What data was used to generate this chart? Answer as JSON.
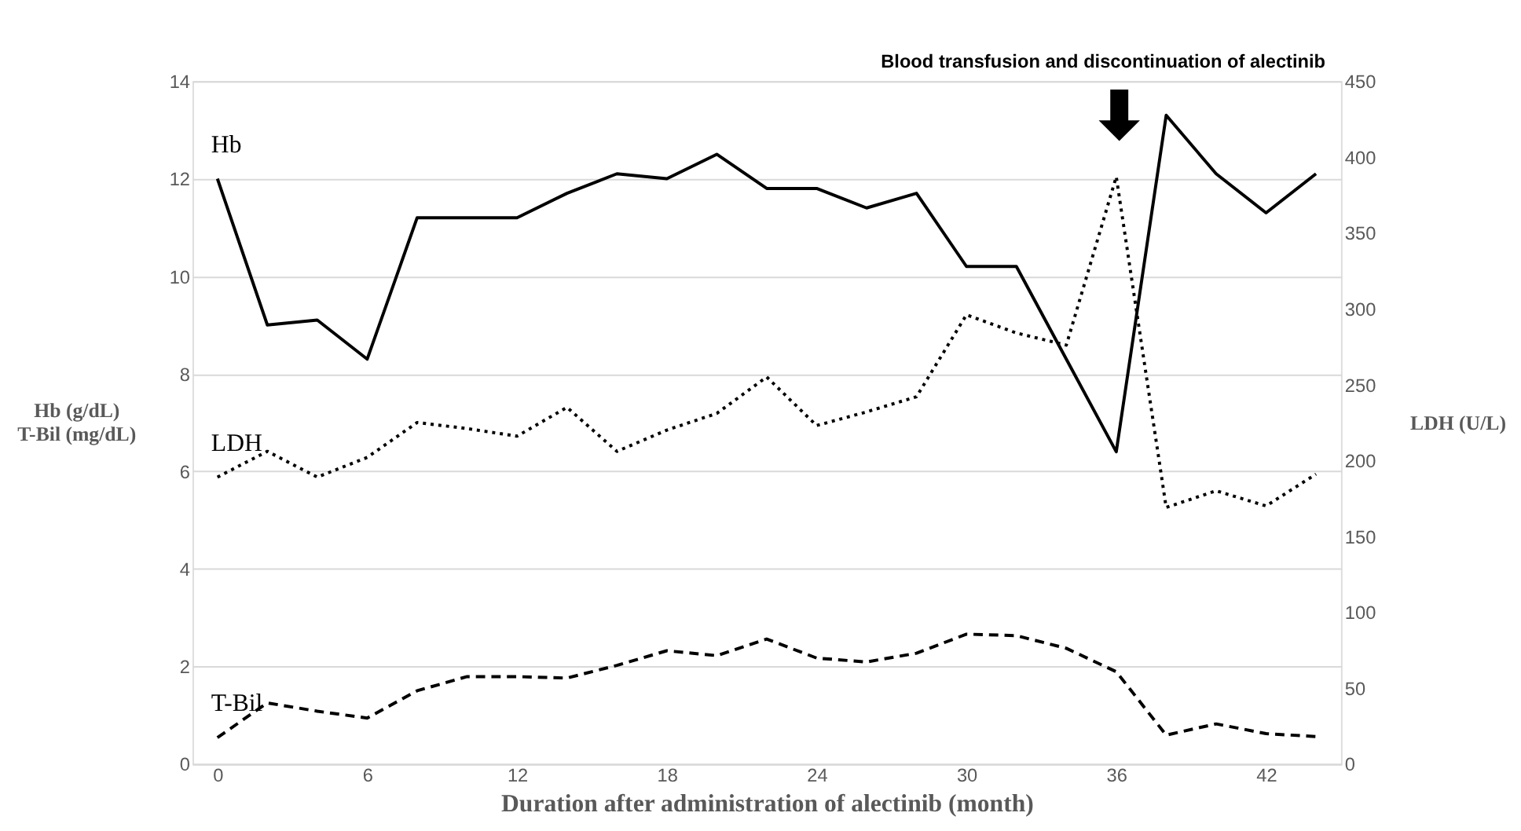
{
  "chart_data": {
    "type": "line",
    "xlabel": "Duration after administration of alectinib (month)",
    "ylabel": "Hb (g/dL)\nT-Bil (mg/dL)",
    "y2label": "LDH (U/L)",
    "x": [
      0,
      2,
      4,
      6,
      8,
      10,
      12,
      14,
      16,
      18,
      20,
      22,
      24,
      26,
      28,
      30,
      32,
      34,
      36,
      38,
      40,
      42,
      44
    ],
    "xlim": [
      -1,
      45
    ],
    "xticks": [
      0,
      6,
      12,
      18,
      24,
      30,
      36,
      42
    ],
    "ylim": [
      0,
      14
    ],
    "yticks": [
      0,
      2,
      4,
      6,
      8,
      10,
      12,
      14
    ],
    "y2lim": [
      0,
      450
    ],
    "y2ticks": [
      0,
      50,
      100,
      150,
      200,
      250,
      300,
      350,
      400,
      450
    ],
    "grid": "y",
    "annotations": [
      "Blood transfusion and discontinuation of alectinib"
    ],
    "series": [
      {
        "name": "Hb",
        "color": "#000000",
        "line_style": "solid",
        "values": [
          12.0,
          9.0,
          9.1,
          8.3,
          11.2,
          11.2,
          11.2,
          11.7,
          12.1,
          12.0,
          12.5,
          11.8,
          11.8,
          11.4,
          11.7,
          10.2,
          10.2,
          8.3,
          6.4,
          13.3,
          12.1,
          11.3,
          12.1
        ]
      },
      {
        "name": "LDH",
        "color": "#000000",
        "line_style": "dotted",
        "axis": "y2",
        "values": [
          189,
          206,
          189,
          202,
          225,
          221,
          216,
          235,
          206,
          220,
          231,
          255,
          223,
          232,
          242,
          296,
          284,
          276,
          387,
          169,
          180,
          170,
          191
        ]
      },
      {
        "name": "T-Bil",
        "color": "#000000",
        "line_style": "dashed",
        "values": [
          0.54,
          1.25,
          1.08,
          0.94,
          1.5,
          1.79,
          1.79,
          1.76,
          2.02,
          2.32,
          2.22,
          2.56,
          2.17,
          2.09,
          2.27,
          2.66,
          2.63,
          2.37,
          1.89,
          0.59,
          0.82,
          0.62,
          0.56
        ]
      }
    ]
  }
}
